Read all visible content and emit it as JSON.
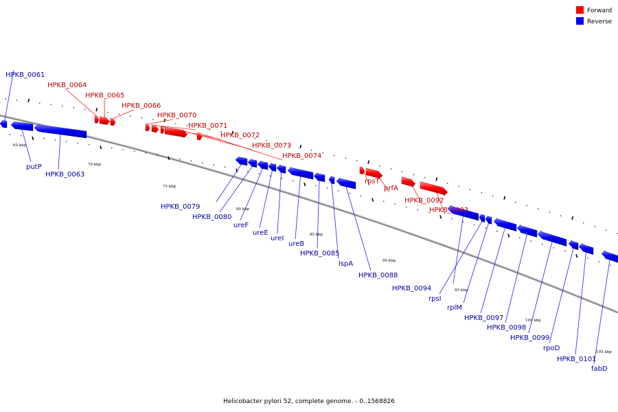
{
  "caption": "Helicobacter pylori 52, complete genome. - 0..1568826",
  "legend": [
    {
      "label": "Forward",
      "color": "#ff0000"
    },
    {
      "label": "Reverse",
      "color": "#0000ff"
    }
  ],
  "kbp_labels": [
    "65 kbp",
    "70 kbp",
    "75 kbp",
    "80 kbp",
    "85 kbp",
    "90 kbp",
    "95 kbp",
    "100 kbp",
    "105 kbp"
  ],
  "genes": [
    {
      "label": "HPKB_0061",
      "strand": "reverse"
    },
    {
      "label": "putP",
      "strand": "reverse"
    },
    {
      "label": "HPKB_0063",
      "strand": "reverse"
    },
    {
      "label": "HPKB_0064",
      "strand": "forward"
    },
    {
      "label": "HPKB_0065",
      "strand": "forward"
    },
    {
      "label": "HPKB_0066",
      "strand": "forward"
    },
    {
      "label": "HPKB_0070",
      "strand": "forward"
    },
    {
      "label": "HPKB_0071",
      "strand": "forward"
    },
    {
      "label": "HPKB_0072",
      "strand": "forward"
    },
    {
      "label": "HPKB_0073",
      "strand": "forward"
    },
    {
      "label": "HPKB_0074",
      "strand": "forward"
    },
    {
      "label": "HPKB_0079",
      "strand": "reverse"
    },
    {
      "label": "HPKB_0080",
      "strand": "reverse"
    },
    {
      "label": "ureF",
      "strand": "reverse"
    },
    {
      "label": "ureE",
      "strand": "reverse"
    },
    {
      "label": "ureI",
      "strand": "reverse"
    },
    {
      "label": "ureB",
      "strand": "reverse"
    },
    {
      "label": "HPKB_0085",
      "strand": "reverse"
    },
    {
      "label": "lspA",
      "strand": "reverse"
    },
    {
      "label": "HPKB_0088",
      "strand": "reverse"
    },
    {
      "label": "rpsT",
      "strand": "forward"
    },
    {
      "label": "prfA",
      "strand": "forward"
    },
    {
      "label": "HPKB_0092",
      "strand": "forward"
    },
    {
      "label": "HPKB_0093",
      "strand": "forward"
    },
    {
      "label": "HPKB_0094",
      "strand": "reverse"
    },
    {
      "label": "rpsI",
      "strand": "reverse"
    },
    {
      "label": "rplM",
      "strand": "reverse"
    },
    {
      "label": "HPKB_0097",
      "strand": "reverse"
    },
    {
      "label": "HPKB_0098",
      "strand": "reverse"
    },
    {
      "label": "HPKB_0099",
      "strand": "reverse"
    },
    {
      "label": "rpoD",
      "strand": "reverse"
    },
    {
      "label": "HPKB_0101",
      "strand": "reverse"
    },
    {
      "label": "fabD",
      "strand": "reverse"
    }
  ]
}
